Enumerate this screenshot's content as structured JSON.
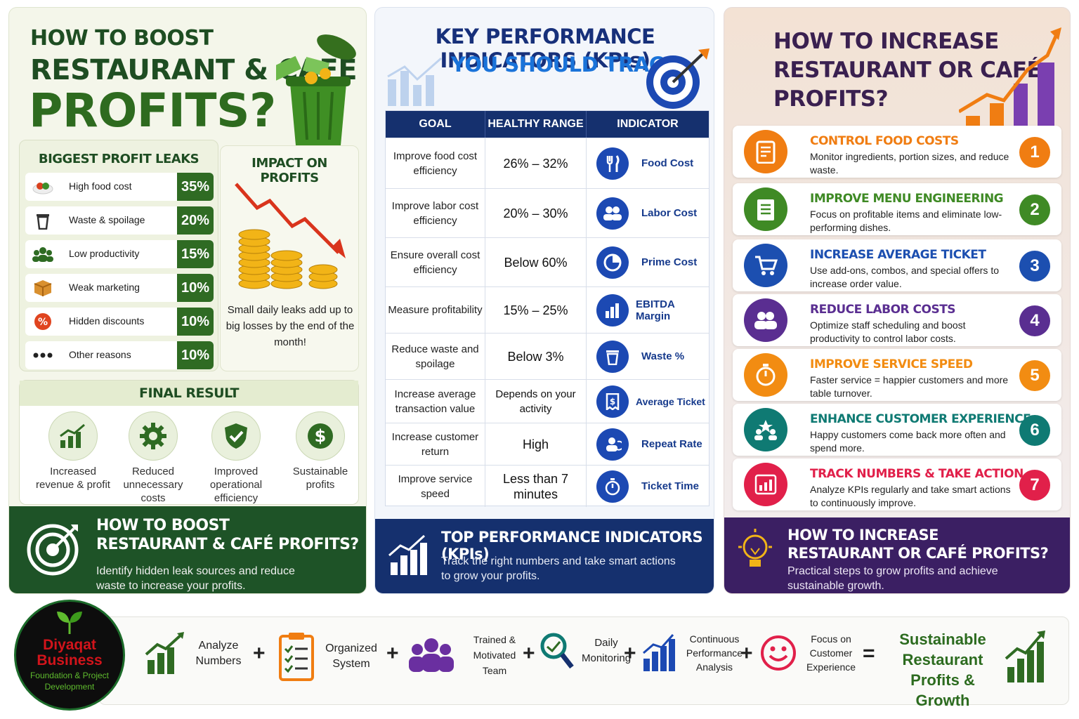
{
  "left": {
    "title_line1": "HOW TO BOOST",
    "title_line2": "RESTAURANT & CAFÉ",
    "title_line3": "PROFITS?",
    "leaks_title": "BIGGEST PROFIT LEAKS",
    "leaks": [
      {
        "label": "High food cost",
        "value": "35%",
        "icon": "food-plate-icon"
      },
      {
        "label": "Waste & spoilage",
        "value": "20%",
        "icon": "trash-icon"
      },
      {
        "label": "Low productivity",
        "value": "15%",
        "icon": "team-icon"
      },
      {
        "label": "Weak marketing",
        "value": "10%",
        "icon": "box-icon"
      },
      {
        "label": "Hidden discounts",
        "value": "10%",
        "icon": "percent-icon"
      },
      {
        "label": "Other reasons",
        "value": "10%",
        "icon": "dots-icon"
      }
    ],
    "impact_title": "IMPACT ON PROFITS",
    "impact_text": "Small daily leaks add up to big losses by the end of the month!",
    "final_title": "FINAL RESULT",
    "final_items": [
      {
        "label": "Increased revenue & profit",
        "icon": "growth-chart-icon"
      },
      {
        "label": "Reduced unnecessary costs",
        "icon": "gear-icon"
      },
      {
        "label": "Improved operational efficiency",
        "icon": "shield-check-icon"
      },
      {
        "label": "Sustainable profits",
        "icon": "dollar-icon"
      }
    ],
    "footer_title_1": "HOW TO BOOST",
    "footer_title_2": "RESTAURANT & CAFÉ PROFITS?",
    "footer_text_1": "Identify hidden leak sources and reduce",
    "footer_text_2": "waste to increase your profits."
  },
  "middle": {
    "title_line1": "KEY PERFORMANCE INDICATORS (KPIs)",
    "title_line2": "YOU SHOULD TRACK",
    "headers": [
      "GOAL",
      "HEALTHY RANGE",
      "INDICATOR"
    ],
    "rows": [
      {
        "goal": "Improve food cost efficiency",
        "range": "26% – 32%",
        "indicator": "Food Cost",
        "icon": "cutlery-icon"
      },
      {
        "goal": "Improve labor cost efficiency",
        "range": "20% – 30%",
        "indicator": "Labor Cost",
        "icon": "people-icon"
      },
      {
        "goal": "Ensure overall cost efficiency",
        "range": "Below 60%",
        "indicator": "Prime Cost",
        "icon": "pie-icon"
      },
      {
        "goal": "Measure profitability",
        "range": "15% – 25%",
        "indicator": "EBITDA Margin",
        "icon": "bar-chart-icon"
      },
      {
        "goal": "Reduce waste and spoilage",
        "range": "Below 3%",
        "indicator": "Waste %",
        "icon": "trash-icon"
      },
      {
        "goal": "Increase average transaction value",
        "range": "Depends on your activity",
        "indicator": "Average Ticket",
        "icon": "receipt-icon"
      },
      {
        "goal": "Increase customer return",
        "range": "High",
        "indicator": "Repeat Rate",
        "icon": "repeat-icon"
      },
      {
        "goal": "Improve service speed",
        "range": "Less than 7 minutes",
        "indicator": "Ticket Time",
        "icon": "stopwatch-icon"
      }
    ],
    "footer_title": "TOP PERFORMANCE INDICATORS (KPIs)",
    "footer_text_1": "Track the right numbers and take smart actions",
    "footer_text_2": "to grow your profits."
  },
  "right": {
    "title_line1": "HOW TO INCREASE",
    "title_line2": "RESTAURANT OR CAFÉ",
    "title_line3": "PROFITS?",
    "steps": [
      {
        "num": "1",
        "title": "CONTROL FOOD COSTS",
        "desc": "Monitor ingredients, portion sizes, and reduce waste.",
        "color": "#f07d12",
        "icon": "checklist-icon"
      },
      {
        "num": "2",
        "title": "IMPROVE MENU ENGINEERING",
        "desc": "Focus on profitable items and eliminate low-performing dishes.",
        "color": "#3f8a25",
        "icon": "menu-icon"
      },
      {
        "num": "3",
        "title": "INCREASE AVERAGE TICKET",
        "desc": "Use add-ons, combos, and special offers to increase order value.",
        "color": "#1c4fb0",
        "icon": "cart-icon"
      },
      {
        "num": "4",
        "title": "REDUCE LABOR COSTS",
        "desc": "Optimize staff scheduling and boost productivity to control labor costs.",
        "color": "#5a2e91",
        "icon": "people-icon"
      },
      {
        "num": "5",
        "title": "IMPROVE SERVICE SPEED",
        "desc": "Faster service = happier customers and more table turnover.",
        "color": "#f28c12",
        "icon": "stopwatch-icon"
      },
      {
        "num": "6",
        "title": "ENHANCE CUSTOMER EXPERIENCE",
        "desc": "Happy customers come back more often and spend more.",
        "color": "#0f7a73",
        "icon": "star-customers-icon"
      },
      {
        "num": "7",
        "title": "TRACK NUMBERS & TAKE ACTION",
        "desc": "Analyze KPIs regularly and take smart actions to continuously improve.",
        "color": "#e1204a",
        "icon": "chart-icon"
      }
    ],
    "footer_title_1": "HOW TO INCREASE",
    "footer_title_2": "RESTAURANT OR CAFÉ PROFITS?",
    "footer_text_1": "Practical steps to grow profits and achieve",
    "footer_text_2": "sustainable growth."
  },
  "bottom": {
    "logo_line1": "Diyaqat",
    "logo_line2": "Business",
    "logo_line3": "Foundation & Project",
    "logo_line4": "Development",
    "steps": [
      {
        "label": "Analyze Numbers",
        "icon": "growth-chart-icon"
      },
      {
        "label": "Organized System",
        "icon": "clipboard-icon"
      },
      {
        "label": "Trained & Motivated Team",
        "icon": "team-icon"
      },
      {
        "label": "Daily Monitoring",
        "icon": "magnifier-icon"
      },
      {
        "label": "Continuous Performance Analysis",
        "icon": "bar-chart-icon"
      },
      {
        "label": "Focus on Customer Experience",
        "icon": "smile-icon"
      }
    ],
    "plus": "+",
    "equals": "=",
    "result": "Sustainable Restaurant Profits & Growth"
  }
}
